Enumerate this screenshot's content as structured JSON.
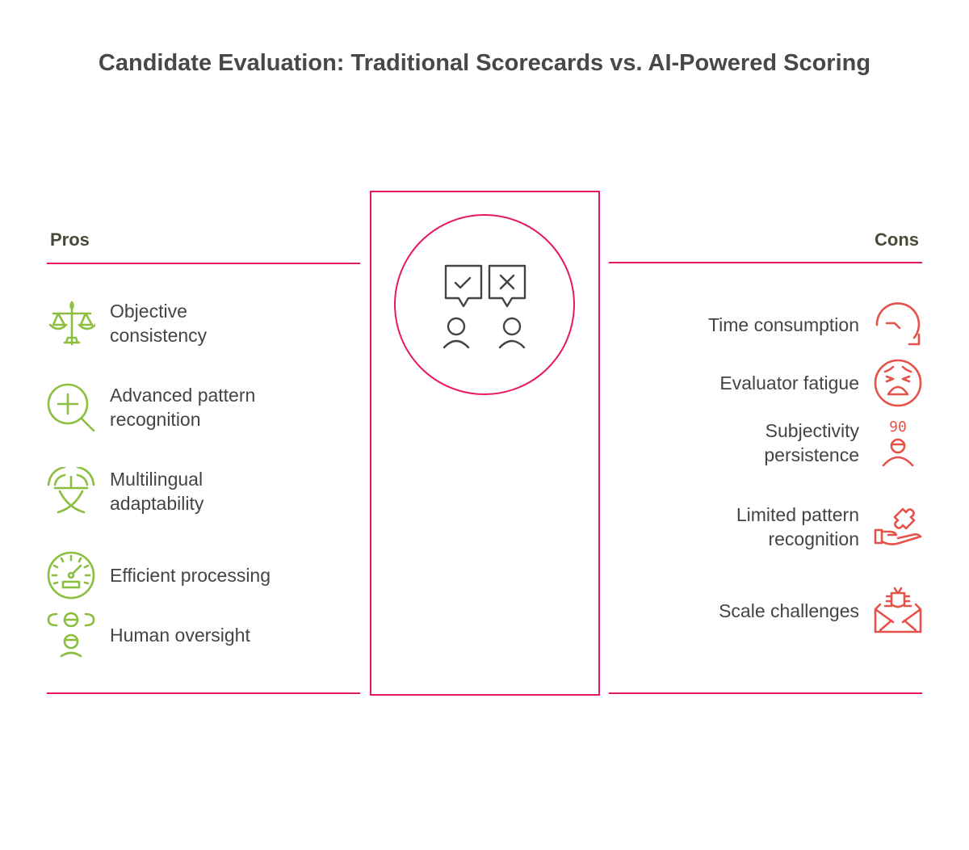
{
  "title": "Candidate Evaluation: Traditional Scorecards vs. AI-Powered Scoring",
  "colors": {
    "accent": "#e6185e",
    "pros": "#8cbf3f",
    "cons": "#e5524a",
    "text": "#444444"
  },
  "center_icon": "two-people-check-cross-speech-bubbles-icon",
  "pros": {
    "label": "Pros",
    "items": [
      {
        "text": "Objective consistency",
        "icon": "balance-scale-icon"
      },
      {
        "text": "Advanced pattern recognition",
        "icon": "zoom-in-magnifier-icon"
      },
      {
        "text": "Multilingual adaptability",
        "icon": "translate-icon"
      },
      {
        "text": "Efficient processing",
        "icon": "speedometer-icon"
      },
      {
        "text": "Human oversight",
        "icon": "people-group-icon"
      }
    ]
  },
  "cons": {
    "label": "Cons",
    "items": [
      {
        "text": "Time consumption",
        "icon": "clock-arrow-icon"
      },
      {
        "text": "Evaluator fatigue",
        "icon": "tired-face-icon"
      },
      {
        "text": "Subjectivity persistence",
        "icon": "person-score-icon",
        "icon_text": "90"
      },
      {
        "text": "Limited pattern recognition",
        "icon": "hand-puzzle-icon"
      },
      {
        "text": "Scale challenges",
        "icon": "bug-envelope-icon"
      }
    ]
  }
}
